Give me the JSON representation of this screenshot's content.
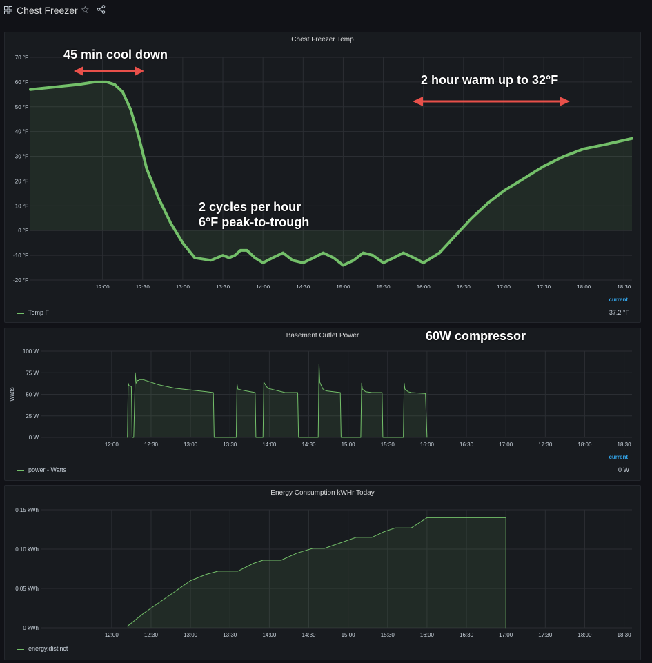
{
  "dashboard": {
    "title": "Chest Freezer",
    "star_icon": "☆"
  },
  "colors": {
    "series": "#73bf69",
    "arrow": "#e8504a",
    "legend_header": "#33a2e5"
  },
  "annotations": {
    "cool_down": "45 min cool down",
    "warm_up": "2 hour warm up to 32°F",
    "cycles_line1": "2 cycles per hour",
    "cycles_line2": "6°F peak-to-trough",
    "compressor": "60W compressor"
  },
  "temp_panel": {
    "title": "Chest Freezer Temp",
    "legend_header": "current",
    "legend_name": "Temp F",
    "legend_value": "37.2 °F"
  },
  "power_panel": {
    "title": "Basement Outlet Power",
    "legend_header": "current",
    "legend_name": "power - Watts",
    "legend_value": "0 W"
  },
  "energy_panel": {
    "title": "Energy Consumption kWHr Today",
    "legend_name": "energy.distinct"
  },
  "chart_data": [
    {
      "type": "area",
      "title": "Chest Freezer Temp",
      "xlabel": "",
      "ylabel": "",
      "x_ticks": [
        "12:00",
        "12:30",
        "13:00",
        "13:30",
        "14:00",
        "14:30",
        "15:00",
        "15:30",
        "16:00",
        "16:30",
        "17:00",
        "17:30",
        "18:00",
        "18:30"
      ],
      "y_ticks": [
        "-20 °F",
        "-10 °F",
        "0 °F",
        "10 °F",
        "20 °F",
        "30 °F",
        "40 °F",
        "50 °F",
        "60 °F",
        "70 °F"
      ],
      "xlim": [
        -0.9,
        6.6
      ],
      "ylim": [
        -20,
        70
      ],
      "series": [
        {
          "name": "Temp F",
          "x": [
            -0.9,
            -0.6,
            -0.3,
            -0.1,
            0.05,
            0.15,
            0.25,
            0.35,
            0.45,
            0.55,
            0.7,
            0.85,
            1.0,
            1.15,
            1.35,
            1.5,
            1.58,
            1.65,
            1.72,
            1.8,
            1.9,
            2.0,
            2.12,
            2.25,
            2.37,
            2.5,
            2.63,
            2.75,
            2.88,
            3.0,
            3.13,
            3.25,
            3.37,
            3.5,
            3.63,
            3.75,
            3.88,
            4.0,
            4.2,
            4.4,
            4.6,
            4.8,
            5.0,
            5.25,
            5.5,
            5.75,
            6.0,
            6.3,
            6.6
          ],
          "y": [
            57,
            58,
            59,
            60,
            60,
            59,
            56,
            49,
            38,
            25,
            13,
            3,
            -5,
            -11,
            -12,
            -10,
            -11,
            -10,
            -8,
            -8,
            -11,
            -13,
            -11,
            -9,
            -12,
            -13,
            -11,
            -9,
            -11,
            -14,
            -12,
            -9,
            -10,
            -13,
            -11,
            -9,
            -11,
            -13,
            -9,
            -2,
            5,
            11,
            16,
            21,
            26,
            30,
            33,
            35,
            37.2
          ]
        }
      ]
    },
    {
      "type": "area",
      "title": "Basement Outlet Power",
      "ylabel": "Watts",
      "x_ticks": [
        "12:00",
        "12:30",
        "13:00",
        "13:30",
        "14:00",
        "14:30",
        "15:00",
        "15:30",
        "16:00",
        "16:30",
        "17:00",
        "17:30",
        "18:00",
        "18:30"
      ],
      "y_ticks": [
        "0 W",
        "25 W",
        "50 W",
        "75 W",
        "100 W"
      ],
      "xlim": [
        -0.9,
        6.6
      ],
      "ylim": [
        0,
        100
      ],
      "series": [
        {
          "name": "power - Watts",
          "x": [
            0.2,
            0.21,
            0.22,
            0.25,
            0.26,
            0.27,
            0.28,
            0.3,
            0.31,
            0.32,
            0.33,
            0.34,
            0.35,
            0.36,
            0.37,
            0.4,
            0.5,
            0.6,
            0.8,
            1.0,
            1.2,
            1.29,
            1.3,
            1.58,
            1.59,
            1.6,
            1.65,
            1.7,
            1.82,
            1.83,
            1.92,
            1.93,
            1.98,
            2.2,
            2.36,
            2.37,
            2.62,
            2.63,
            2.64,
            2.68,
            2.72,
            2.9,
            2.91,
            3.16,
            3.17,
            3.18,
            3.22,
            3.3,
            3.43,
            3.44,
            3.7,
            3.71,
            3.72,
            3.76,
            3.8,
            3.97,
            3.98,
            4.0
          ],
          "y": [
            0,
            63,
            60,
            59,
            0,
            0,
            0,
            75,
            63,
            65,
            66,
            66,
            67,
            67,
            67,
            67,
            64,
            61,
            57,
            55,
            53,
            52,
            0,
            0,
            62,
            56,
            55,
            54,
            52,
            0,
            0,
            64,
            57,
            52,
            52,
            0,
            0,
            85,
            64,
            56,
            54,
            52,
            0,
            0,
            63,
            56,
            53,
            52,
            52,
            0,
            0,
            63,
            56,
            53,
            52,
            51,
            51,
            0
          ]
        }
      ]
    },
    {
      "type": "area",
      "title": "Energy Consumption kWHr Today",
      "x_ticks": [
        "12:00",
        "12:30",
        "13:00",
        "13:30",
        "14:00",
        "14:30",
        "15:00",
        "15:30",
        "16:00",
        "16:30",
        "17:00",
        "17:30",
        "18:00",
        "18:30"
      ],
      "y_ticks": [
        "0 kWh",
        "0.05 kWh",
        "0.10 kWh",
        "0.15 kWh"
      ],
      "xlim": [
        -0.9,
        6.6
      ],
      "ylim": [
        0,
        0.15
      ],
      "series": [
        {
          "name": "energy.distinct",
          "x": [
            0.2,
            0.3,
            0.4,
            0.6,
            0.8,
            1.0,
            1.2,
            1.35,
            1.6,
            1.8,
            1.92,
            2.15,
            2.35,
            2.55,
            2.7,
            2.9,
            3.1,
            3.3,
            3.45,
            3.6,
            3.8,
            4.0,
            5.0,
            5.0
          ],
          "y": [
            0.002,
            0.01,
            0.018,
            0.032,
            0.046,
            0.06,
            0.068,
            0.072,
            0.072,
            0.082,
            0.086,
            0.086,
            0.095,
            0.101,
            0.101,
            0.108,
            0.115,
            0.115,
            0.122,
            0.127,
            0.127,
            0.14,
            0.14,
            0
          ]
        }
      ]
    }
  ]
}
